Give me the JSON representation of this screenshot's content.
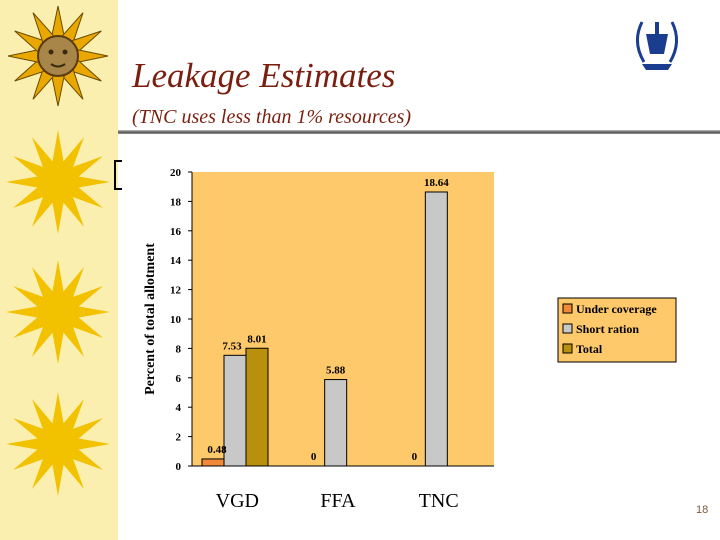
{
  "slide": {
    "title": "Leakage Estimates",
    "subtitle": "(TNC uses less than 1% resources)",
    "page_number": "18"
  },
  "icons": [
    "sun-icon",
    "un-emblem-icon"
  ],
  "colors": {
    "plot_bg": "#fdc96a",
    "under_coverage": "#f08a3a",
    "short_ration": "#c8c8c8",
    "total": "#b8900e",
    "title": "#7a1f10",
    "sidebar": "#fbefb0"
  },
  "chart_data": {
    "type": "bar",
    "title": "",
    "xlabel": "",
    "ylabel": "Percent of total allotment",
    "categories": [
      "VGD",
      "FFA",
      "TNC"
    ],
    "series": [
      {
        "name": "Under coverage",
        "values": [
          0.48,
          0,
          0
        ],
        "labels": [
          "0.48",
          "0",
          "0"
        ]
      },
      {
        "name": "Short ration",
        "values": [
          7.53,
          5.88,
          18.64
        ],
        "labels": [
          "7.53",
          "5.88",
          "18.64"
        ]
      },
      {
        "name": "Total",
        "values": [
          8.01,
          null,
          null
        ],
        "labels": [
          "8.01",
          null,
          null
        ]
      }
    ],
    "ylim": [
      0,
      20
    ],
    "yticks": [
      0,
      2,
      4,
      6,
      8,
      10,
      12,
      14,
      16,
      18,
      20
    ],
    "grid": false,
    "legend": "right"
  }
}
